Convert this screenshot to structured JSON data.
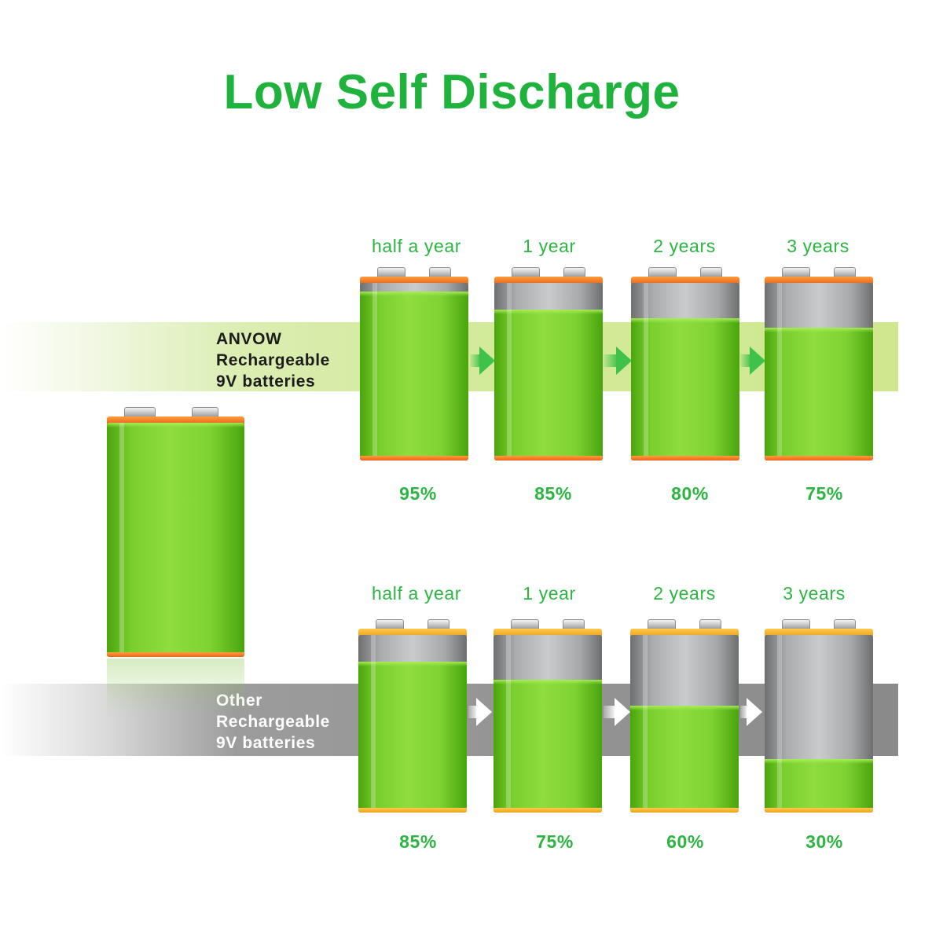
{
  "title": "Low Self Discharge",
  "colors": {
    "title_green": "#1fb23c",
    "label_green": "#2cb541",
    "anvow_cap": "#e8641a",
    "other_cap": "#eba21a"
  },
  "anvow": {
    "label_lines": [
      "ANVOW",
      "Rechargeable",
      "9V batteries"
    ],
    "cap_color": "orange",
    "periods": [
      "half a year",
      "1 year",
      "2 years",
      "3 years"
    ],
    "charge_percent": [
      "95%",
      "85%",
      "80%",
      "75%"
    ]
  },
  "other": {
    "label_lines": [
      "Other",
      "Rechargeable",
      "9V batteries"
    ],
    "cap_color": "yellow",
    "periods": [
      "half a year",
      "1 year",
      "2 years",
      "3 years"
    ],
    "charge_percent": [
      "85%",
      "75%",
      "60%",
      "30%"
    ]
  },
  "hero_battery": {
    "cap_color": "orange",
    "charge_fraction": 1.0
  },
  "icons": [
    "battery-icon",
    "arrow-right-icon"
  ]
}
